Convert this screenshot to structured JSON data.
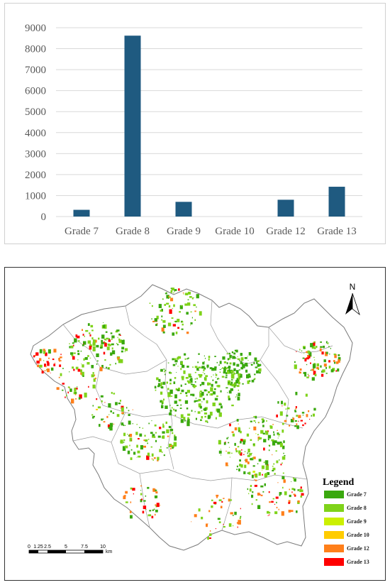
{
  "chart_data": {
    "type": "bar",
    "title": "",
    "xlabel": "",
    "ylabel": "",
    "categories": [
      "Grade 7",
      "Grade 8",
      "Grade 9",
      "Grade 10",
      "Grade 12",
      "Grade 13"
    ],
    "values": [
      320,
      8620,
      700,
      0,
      800,
      1420
    ],
    "ylim": [
      0,
      9000
    ],
    "yticks": [
      "0",
      "1000",
      "2000",
      "3000",
      "4000",
      "5000",
      "6000",
      "7000",
      "8000",
      "9000"
    ],
    "grid": true,
    "bar_color": "#1f5a80"
  },
  "map": {
    "north_label": "N",
    "legend_title": "Legend",
    "legend": [
      {
        "label": "Grade 7",
        "color": "#3aa80e"
      },
      {
        "label": "Grade 8",
        "color": "#7fd31a"
      },
      {
        "label": "Grade 9",
        "color": "#ccf000"
      },
      {
        "label": "Grade 10",
        "color": "#ffcc00"
      },
      {
        "label": "Grade 12",
        "color": "#ff7f1a"
      },
      {
        "label": "Grade 13",
        "color": "#ff0000"
      }
    ],
    "scale_labels": [
      "0",
      "1.25",
      "2.5",
      "5",
      "7.5",
      "10"
    ],
    "scale_unit": "km"
  }
}
